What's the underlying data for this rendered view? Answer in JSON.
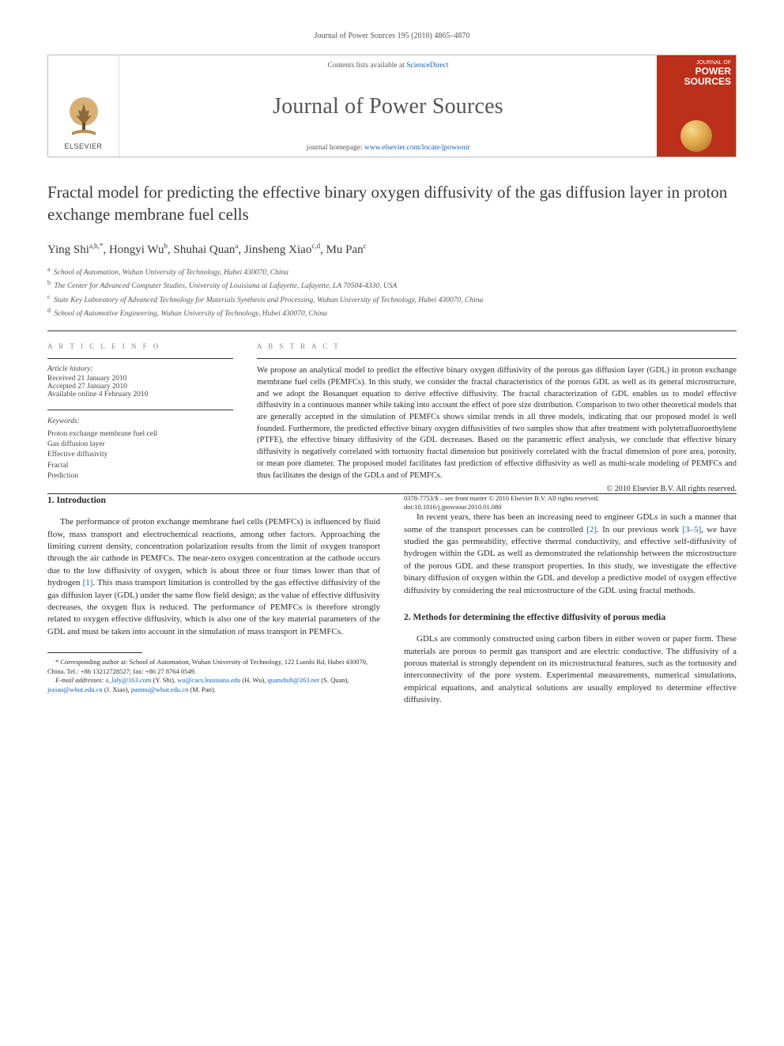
{
  "running_header": "Journal of Power Sources 195 (2010) 4865–4870",
  "banner": {
    "publisher_label": "ELSEVIER",
    "contents_prefix": "Contents lists available at ",
    "contents_link": "ScienceDirect",
    "journal_name": "Journal of Power Sources",
    "homepage_prefix": "journal homepage: ",
    "homepage_link": "www.elsevier.com/locate/jpowsour",
    "cover_top": "JOURNAL OF",
    "cover_title": "POWER SOURCES"
  },
  "article": {
    "title": "Fractal model for predicting the effective binary oxygen diffusivity of the gas diffusion layer in proton exchange membrane fuel cells",
    "authors_html": "Ying Shi<sup>a,b,*</sup>, Hongyi Wu<sup>b</sup>, Shuhai Quan<sup>a</sup>, Jinsheng Xiao<sup>c,d</sup>, Mu Pan<sup>c</sup>",
    "affiliations": [
      {
        "sup": "a",
        "text": "School of Automation, Wuhan University of Technology, Hubei 430070, China"
      },
      {
        "sup": "b",
        "text": "The Center for Advanced Computer Studies, University of Louisiana at Lafayette, Lafayette, LA 70504-4330, USA"
      },
      {
        "sup": "c",
        "text": "State Key Laboratory of Advanced Technology for Materials Synthesis and Processing, Wuhan University of Technology, Hubei 430070, China"
      },
      {
        "sup": "d",
        "text": "School of Automotive Engineering, Wuhan University of Technology, Hubei 430070, China"
      }
    ]
  },
  "info": {
    "heading": "A R T I C L E   I N F O",
    "history_label": "Article history:",
    "history": [
      "Received 21 January 2010",
      "Accepted 27 January 2010",
      "Available online 4 February 2010"
    ],
    "keywords_label": "Keywords:",
    "keywords": [
      "Proton exchange membrane fuel cell",
      "Gas diffusion layer",
      "Effective diffusivity",
      "Fractal",
      "Prediction"
    ]
  },
  "abstract": {
    "heading": "A B S T R A C T",
    "text": "We propose an analytical model to predict the effective binary oxygen diffusivity of the porous gas diffusion layer (GDL) in proton exchange membrane fuel cells (PEMFCs). In this study, we consider the fractal characteristics of the porous GDL as well as its general microstructure, and we adopt the Bosanquet equation to derive effective diffusivity. The fractal characterization of GDL enables us to model effective diffusivity in a continuous manner while taking into account the effect of pore size distribution. Comparison to two other theoretical models that are generally accepted in the simulation of PEMFCs shows similar trends in all three models, indicating that our proposed model is well founded. Furthermore, the predicted effective binary oxygen diffusivities of two samples show that after treatment with polytetrafluoroethylene (PTFE), the effective binary diffusivity of the GDL decreases. Based on the parametric effect analysis, we conclude that effective binary diffusivity is negatively correlated with tortuosity fractal dimension but positively correlated with the fractal dimension of pore area, porosity, or mean pore diameter. The proposed model facilitates fast prediction of effective diffusivity as well as multi-scale modeling of PEMFCs and thus facilitates the design of the GDLs and of PEMFCs.",
    "copyright": "© 2010 Elsevier B.V. All rights reserved."
  },
  "body": {
    "sec1_heading": "1.  Introduction",
    "sec1_p1_a": "The performance of proton exchange membrane fuel cells (PEMFCs) is influenced by fluid flow, mass transport and electrochemical reactions, among other factors. Approaching the limiting current density, concentration polarization results from the limit of oxygen transport through the air cathode in PEMFCs. The near-zero oxygen concentration at the cathode occurs due to the low diffusivity of oxygen, which is about three or four times lower than that of hydrogen ",
    "sec1_ref1": "[1]",
    "sec1_p1_b": ". This mass transport limitation is controlled by the gas effective diffusivity of the gas diffusion layer (GDL) under the same flow field design; as the value of effective diffusivity decreases, the oxygen flux is reduced. The performance of PEMFCs is therefore strongly related to oxygen effective diffusivity, which is also one of the key material parameters of the GDL and must be taken into account in the simulation of mass transport in PEMFCs.",
    "sec1_p2_a": "In recent years, there has been an increasing need to engineer GDLs in such a manner that some of the transport processes can be controlled ",
    "sec1_ref2": "[2]",
    "sec1_p2_b": ". In our previous work ",
    "sec1_ref3": "[3–5]",
    "sec1_p2_c": ", we have studied the gas permeability, effective thermal conductivity, and effective self-diffusivity of hydrogen within the GDL as well as demonstrated the relationship between the microstructure of the porous GDL and these transport properties. In this study, we investigate the effective binary diffusion of oxygen within the GDL and develop a predictive model of oxygen effective diffusivity by considering the real microstructure of the GDL using fractal methods.",
    "sec2_heading": "2.  Methods for determining the effective diffusivity of porous media",
    "sec2_p1": "GDLs are commonly constructed using carbon fibers in either woven or paper form. These materials are porous to permit gas transport and are electric conductive. The diffusivity of a porous material is strongly dependent on its microstructural features, such as the tortuosity and interconnectivity of the pore system. Experimental measurements, numerical simulations, empirical equations, and analytical solutions are usually employed to determine effective diffusivity."
  },
  "footnotes": {
    "corr": "* Corresponding author at: School of Automation, Wuhan University of Technology, 122 Luoshi Rd, Hubei 430070, China. Tel.: +86 13212728527; fax: +86 27 8764 0549.",
    "emails_label": "E-mail addresses: ",
    "emails": [
      {
        "addr": "a_laly@163.com",
        "who": " (Y. Shi), "
      },
      {
        "addr": "wu@cacs.louisiana.edu",
        "who": " (H. Wu), "
      },
      {
        "addr": "quanshuh@263.net",
        "who": " (S. Quan), "
      },
      {
        "addr": "jsxiao@whut.edu.cn",
        "who": " (J. Xiao), "
      },
      {
        "addr": "panmu@whut.edu.cn",
        "who": " (M. Pan)."
      }
    ]
  },
  "footer": {
    "line1": "0378-7753/$ – see front matter © 2010 Elsevier B.V. All rights reserved.",
    "line2": "doi:10.1016/j.jpowsour.2010.01.080"
  },
  "colors": {
    "link": "#1560b3",
    "cover_bg": "#bc2f1a"
  }
}
